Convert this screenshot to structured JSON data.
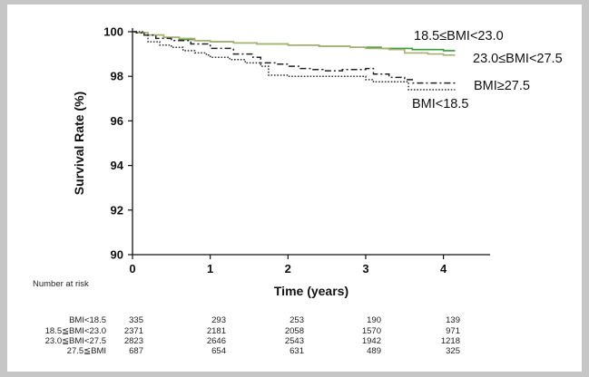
{
  "chart_data": {
    "type": "line",
    "title": "",
    "xlabel": "Time (years)",
    "ylabel": "Survival Rate (%)",
    "xlim": [
      0,
      4.6
    ],
    "ylim": [
      90,
      100
    ],
    "x_ticks": [
      0,
      1,
      2,
      3,
      4
    ],
    "y_ticks": [
      90,
      92,
      94,
      96,
      98,
      100
    ],
    "grid": false,
    "series": [
      {
        "name": "18.5≤BMI<23.0",
        "color": "#3a9a3a",
        "dash": "solid",
        "x": [
          0,
          0.05,
          0.2,
          0.4,
          0.6,
          0.8,
          1.0,
          1.3,
          1.6,
          2.0,
          2.4,
          2.8,
          3.2,
          3.6,
          4.0,
          4.15
        ],
        "y": [
          100,
          99.95,
          99.85,
          99.75,
          99.65,
          99.6,
          99.55,
          99.5,
          99.45,
          99.4,
          99.35,
          99.3,
          99.25,
          99.2,
          99.15,
          99.15
        ]
      },
      {
        "name": "23.0≤BMI<27.5",
        "color": "#a8b070",
        "dash": "solid",
        "x": [
          0,
          0.05,
          0.2,
          0.4,
          0.6,
          0.8,
          1.0,
          1.3,
          1.6,
          2.0,
          2.4,
          2.8,
          3.0,
          3.3,
          3.5,
          3.8,
          4.0,
          4.15
        ],
        "y": [
          100,
          99.95,
          99.85,
          99.75,
          99.7,
          99.6,
          99.55,
          99.5,
          99.45,
          99.4,
          99.35,
          99.3,
          99.25,
          99.2,
          99.05,
          99.0,
          98.95,
          98.95
        ]
      },
      {
        "name": "BMI≥27.5",
        "color": "#222222",
        "dash": "dashdot",
        "x": [
          0,
          0.05,
          0.15,
          0.3,
          0.5,
          0.75,
          1.0,
          1.3,
          1.55,
          1.65,
          1.85,
          2.0,
          2.15,
          2.3,
          2.45,
          2.7,
          3.0,
          3.1,
          3.3,
          3.5,
          3.6,
          4.0,
          4.15
        ],
        "y": [
          100,
          99.95,
          99.85,
          99.7,
          99.6,
          99.45,
          99.25,
          99.0,
          98.85,
          98.6,
          98.55,
          98.45,
          98.35,
          98.3,
          98.25,
          98.3,
          98.35,
          98.1,
          97.95,
          97.85,
          97.7,
          97.7,
          97.7
        ]
      },
      {
        "name": "BMI<18.5",
        "color": "#333333",
        "dash": "dotted",
        "x": [
          0,
          0.15,
          0.2,
          0.35,
          0.5,
          0.65,
          0.8,
          0.95,
          1.0,
          1.25,
          1.45,
          1.65,
          1.75,
          2.0,
          2.35,
          2.65,
          3.0,
          3.1,
          3.35,
          3.5,
          3.55,
          4.0,
          4.15
        ],
        "y": [
          100,
          99.85,
          99.55,
          99.4,
          99.3,
          99.15,
          99.05,
          98.95,
          98.85,
          98.75,
          98.6,
          98.45,
          98.05,
          98.0,
          98.0,
          98.0,
          97.85,
          97.75,
          97.75,
          97.75,
          97.4,
          97.4,
          97.4
        ]
      }
    ],
    "legend_labels": [
      {
        "text": "18.5≤BMI<23.0",
        "series": "18.5≤BMI<23.0"
      },
      {
        "text": "23.0≤BMI<27.5",
        "series": "23.0≤BMI<27.5"
      },
      {
        "text": "BMI≥27.5",
        "series": "BMI≥27.5"
      },
      {
        "text": "BMI<18.5",
        "series": "BMI<18.5"
      }
    ]
  },
  "risk_table": {
    "title": "Number at risk",
    "rows": [
      {
        "label": "BMI<18.5",
        "values": [
          "335",
          "293",
          "253",
          "190",
          "139"
        ]
      },
      {
        "label": "18.5≦BMI<23.0",
        "values": [
          "2371",
          "2181",
          "2058",
          "1570",
          "971"
        ]
      },
      {
        "label": "23.0≦BMI<27.5",
        "values": [
          "2823",
          "2646",
          "2543",
          "1942",
          "1218"
        ]
      },
      {
        "label": "27.5≦BMI",
        "values": [
          "687",
          "654",
          "631",
          "489",
          "325"
        ]
      }
    ]
  }
}
